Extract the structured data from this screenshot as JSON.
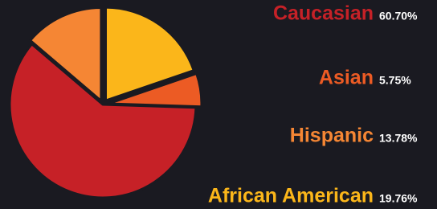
{
  "chart_data": {
    "type": "pie",
    "categories": [
      "Caucasian",
      "Asian",
      "Hispanic",
      "African American"
    ],
    "values": [
      60.7,
      5.75,
      13.78,
      19.76
    ],
    "value_labels": [
      "60.70%",
      "5.75%",
      "13.78%",
      "19.76%"
    ],
    "colors": [
      "#c62127",
      "#ec5b24",
      "#f58634",
      "#fbb61a"
    ]
  }
}
